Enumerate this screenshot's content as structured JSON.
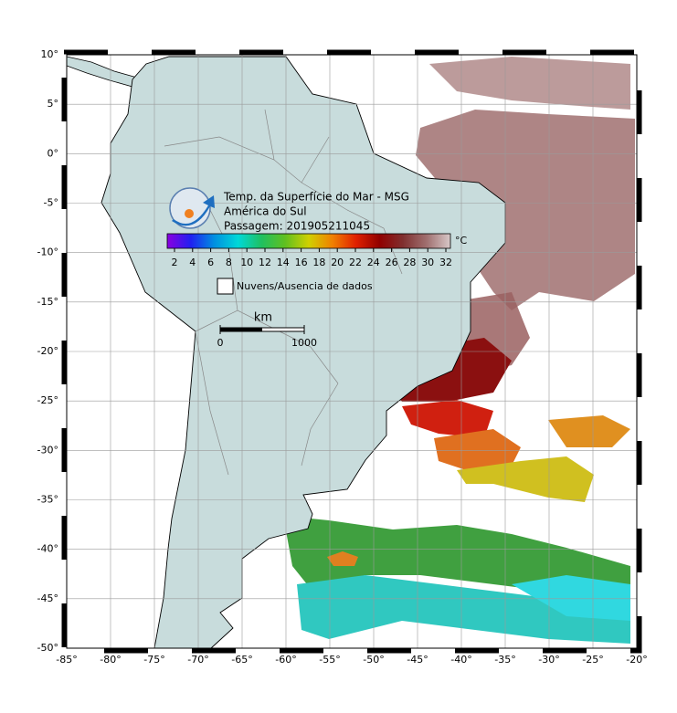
{
  "header": {
    "title": "Temp. da Superfície do Mar - MSG",
    "region": "América do Sul",
    "pass": "Passagem: 201905211045"
  },
  "colorbar": {
    "unit": "°C",
    "colors": [
      "#8a00e0",
      "#2020f0",
      "#0090e0",
      "#00d8d8",
      "#20c060",
      "#60c020",
      "#d0d000",
      "#f08000",
      "#e02000",
      "#900000",
      "#803030",
      "#a07070",
      "#d8c8c8"
    ],
    "ticks": [
      2,
      4,
      6,
      8,
      10,
      12,
      14,
      16,
      18,
      20,
      22,
      24,
      26,
      28,
      30,
      32
    ]
  },
  "legend": {
    "label": "Nuvens/Ausencia de dados"
  },
  "scale_bar": {
    "unit": "km",
    "ticks": [
      0,
      1000
    ]
  },
  "axes": {
    "lon_ticks": [
      {
        "value": -85,
        "label": "-85°"
      },
      {
        "value": -80,
        "label": "-80°"
      },
      {
        "value": -75,
        "label": "-75°"
      },
      {
        "value": -70,
        "label": "-70°"
      },
      {
        "value": -65,
        "label": "-65°"
      },
      {
        "value": -60,
        "label": "-60°"
      },
      {
        "value": -55,
        "label": "-55°"
      },
      {
        "value": -50,
        "label": "-50°"
      },
      {
        "value": -45,
        "label": "-45°"
      },
      {
        "value": -40,
        "label": "-40°"
      },
      {
        "value": -35,
        "label": "-35°"
      },
      {
        "value": -30,
        "label": "-30°"
      },
      {
        "value": -25,
        "label": "-25°"
      },
      {
        "value": -20,
        "label": "-20°"
      }
    ],
    "lat_ticks": [
      {
        "value": 10,
        "label": "10°"
      },
      {
        "value": 5,
        "label": "5°"
      },
      {
        "value": 0,
        "label": "0°"
      },
      {
        "value": -5,
        "label": "-5°"
      },
      {
        "value": -10,
        "label": "-10°"
      },
      {
        "value": -15,
        "label": "-15°"
      },
      {
        "value": -20,
        "label": "-20°"
      },
      {
        "value": -25,
        "label": "-25°"
      },
      {
        "value": -30,
        "label": "-30°"
      },
      {
        "value": -35,
        "label": "-35°"
      },
      {
        "value": -40,
        "label": "-40°"
      },
      {
        "value": -45,
        "label": "-45°"
      },
      {
        "value": -50,
        "label": "-50°"
      }
    ]
  }
}
